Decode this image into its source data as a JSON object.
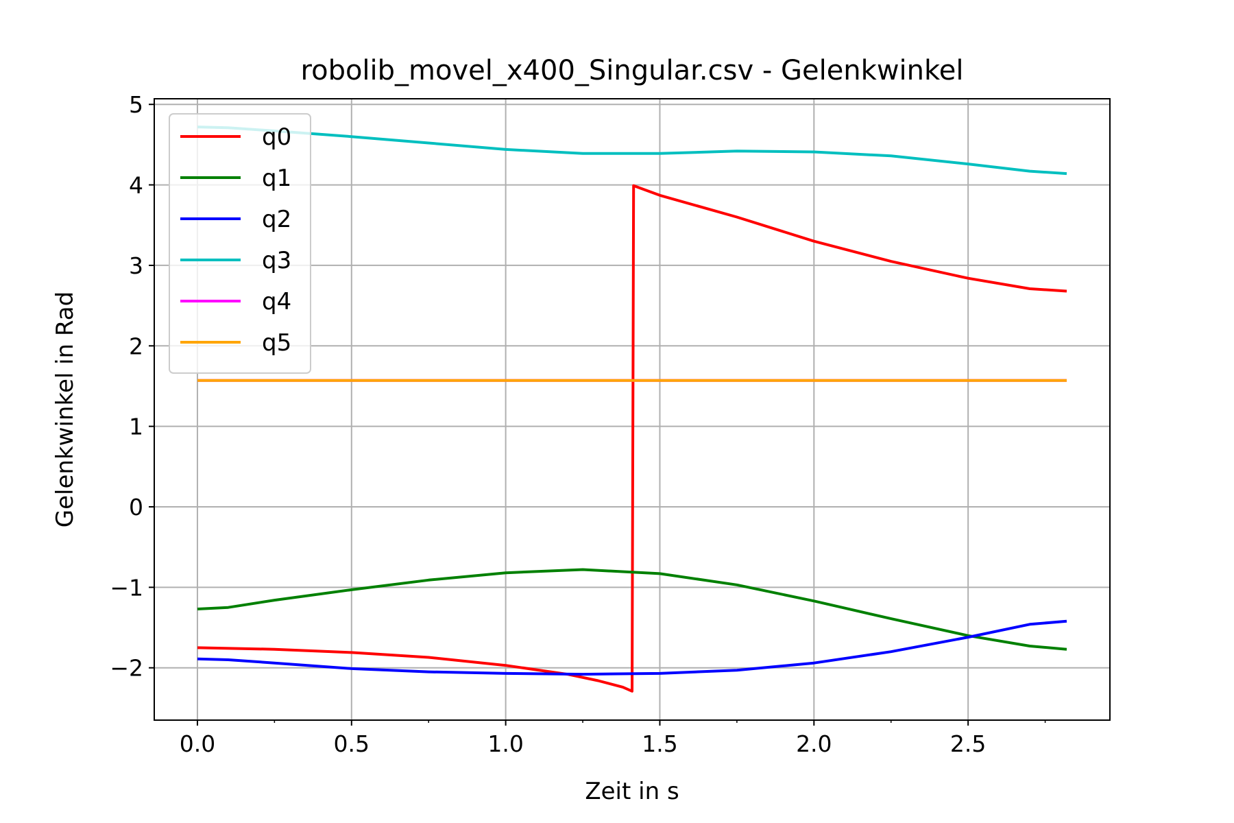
{
  "chart_data": {
    "type": "line",
    "title": "robolib_movel_x400_Singular.csv - Gelenkwinkel",
    "xlabel": "Zeit in s",
    "ylabel": "Gelenkwinkel in Rad",
    "xlim": [
      -0.14,
      2.96
    ],
    "ylim": [
      -2.65,
      5.07
    ],
    "xticks": [
      0.0,
      0.5,
      1.0,
      1.5,
      2.0,
      2.5
    ],
    "xtick_labels": [
      "0.0",
      "0.5",
      "1.0",
      "1.5",
      "2.0",
      "2.5"
    ],
    "xminor": [
      0.25,
      0.75,
      1.25,
      1.75,
      2.25,
      2.75
    ],
    "yticks": [
      -2,
      -1,
      0,
      1,
      2,
      3,
      4,
      5
    ],
    "ytick_labels": [
      "−2",
      "−1",
      "0",
      "1",
      "2",
      "3",
      "4",
      "5"
    ],
    "grid": true,
    "legend": "upper-left",
    "series": [
      {
        "name": "q0",
        "color": "#ff0000",
        "x": [
          0,
          0.25,
          0.5,
          0.75,
          1.0,
          1.2,
          1.3,
          1.38,
          1.41,
          1.415,
          1.5,
          1.75,
          2.0,
          2.25,
          2.5,
          2.7,
          2.82
        ],
        "y": [
          -1.75,
          -1.77,
          -1.81,
          -1.87,
          -1.97,
          -2.08,
          -2.16,
          -2.24,
          -2.29,
          3.99,
          3.87,
          3.6,
          3.3,
          3.05,
          2.84,
          2.71,
          2.68
        ]
      },
      {
        "name": "q1",
        "color": "#008000",
        "x": [
          0,
          0.1,
          0.25,
          0.5,
          0.75,
          1.0,
          1.25,
          1.5,
          1.75,
          2.0,
          2.25,
          2.5,
          2.7,
          2.82
        ],
        "y": [
          -1.27,
          -1.25,
          -1.16,
          -1.03,
          -0.91,
          -0.82,
          -0.78,
          -0.83,
          -0.97,
          -1.17,
          -1.39,
          -1.6,
          -1.73,
          -1.77
        ]
      },
      {
        "name": "q2",
        "color": "#0000ff",
        "x": [
          0,
          0.1,
          0.25,
          0.5,
          0.75,
          1.0,
          1.25,
          1.5,
          1.75,
          2.0,
          2.25,
          2.5,
          2.7,
          2.82
        ],
        "y": [
          -1.89,
          -1.9,
          -1.94,
          -2.01,
          -2.05,
          -2.07,
          -2.08,
          -2.07,
          -2.03,
          -1.94,
          -1.8,
          -1.62,
          -1.46,
          -1.42
        ]
      },
      {
        "name": "q3",
        "color": "#00bfbf",
        "x": [
          0,
          0.1,
          0.25,
          0.5,
          0.75,
          1.0,
          1.25,
          1.5,
          1.75,
          2.0,
          2.25,
          2.5,
          2.7,
          2.82
        ],
        "y": [
          4.72,
          4.71,
          4.67,
          4.6,
          4.52,
          4.44,
          4.39,
          4.39,
          4.42,
          4.41,
          4.36,
          4.26,
          4.17,
          4.14
        ]
      },
      {
        "name": "q4",
        "color": "#ff00ff",
        "x": [
          0,
          2.82
        ],
        "y": [
          1.57,
          1.57
        ]
      },
      {
        "name": "q5",
        "color": "#ffa500",
        "x": [
          0,
          2.82
        ],
        "y": [
          1.57,
          1.57
        ]
      }
    ]
  }
}
